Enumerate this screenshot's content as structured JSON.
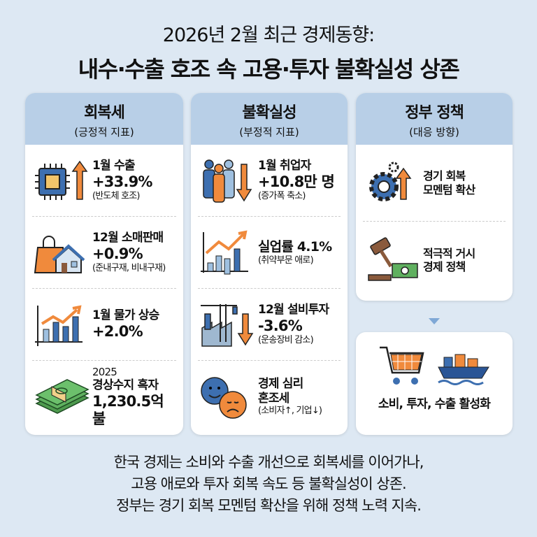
{
  "title": {
    "line1": "2026년 2월 최근 경제동향:",
    "line2": "내수·수출 호조 속 고용·투자 불확실성 상존"
  },
  "columns": [
    {
      "heading": "회복세",
      "sub": "(긍정적 지표)",
      "items": [
        {
          "icon": "chip-up-icon",
          "a": "1월 수출",
          "b": "+33.9%",
          "c": "(반도체 호조)"
        },
        {
          "icon": "shopping-house-icon",
          "a": "12월 소매판매",
          "b": "+0.9%",
          "c": "(준내구재, 비내구재)"
        },
        {
          "icon": "bar-chart-up-icon",
          "a": "1월 물가 상승",
          "b": "+2.0%",
          "c": ""
        },
        {
          "icon": "money-stack-icon",
          "a": "2025",
          "a2": "경상수지 흑자",
          "b": "1,230.5억 불"
        }
      ]
    },
    {
      "heading": "불확실성",
      "sub": "(부정적 지표)",
      "items": [
        {
          "icon": "people-down-icon",
          "a": "1월 취업자",
          "b": "+10.8만 명",
          "c": "(증가폭 축소)"
        },
        {
          "icon": "chart-up-icon",
          "b": "실업률 4.1%",
          "c": "(취약부문 애로)"
        },
        {
          "icon": "factory-down-icon",
          "a": "12월 설비투자",
          "b": "-3.6%",
          "c": "(운송장비 감소)"
        },
        {
          "icon": "faces-icon",
          "a": "경제 심리",
          "a2": "혼조세",
          "c": "(소비자↑, 기업↓)"
        }
      ]
    },
    {
      "heading": "정부 정책",
      "sub": "(대응 방향)",
      "items": [
        {
          "icon": "gear-up-icon",
          "a": "경기 회복",
          "a2": "모멘텀 확산"
        },
        {
          "icon": "gavel-money-icon",
          "a": "적극적 거시",
          "a2": "경제 정책"
        }
      ],
      "result": {
        "icons": [
          "cart-icon",
          "ship-icon"
        ],
        "label": "소비, 투자, 수출 활성화"
      }
    }
  ],
  "bottom": [
    "한국 경제는 소비와 수출 개선으로 회복세를 이어가나,",
    "고용 애로와 투자 회복 속도 등 불확실성이 상존.",
    "정부는 경기 회복 모멘텀 확산을 위해 정책 노력 지속."
  ],
  "colors": {
    "header": "#b8cfe7",
    "blue": "#3d6fb0",
    "orange": "#f08a3c",
    "bg": "#dde8f3"
  }
}
